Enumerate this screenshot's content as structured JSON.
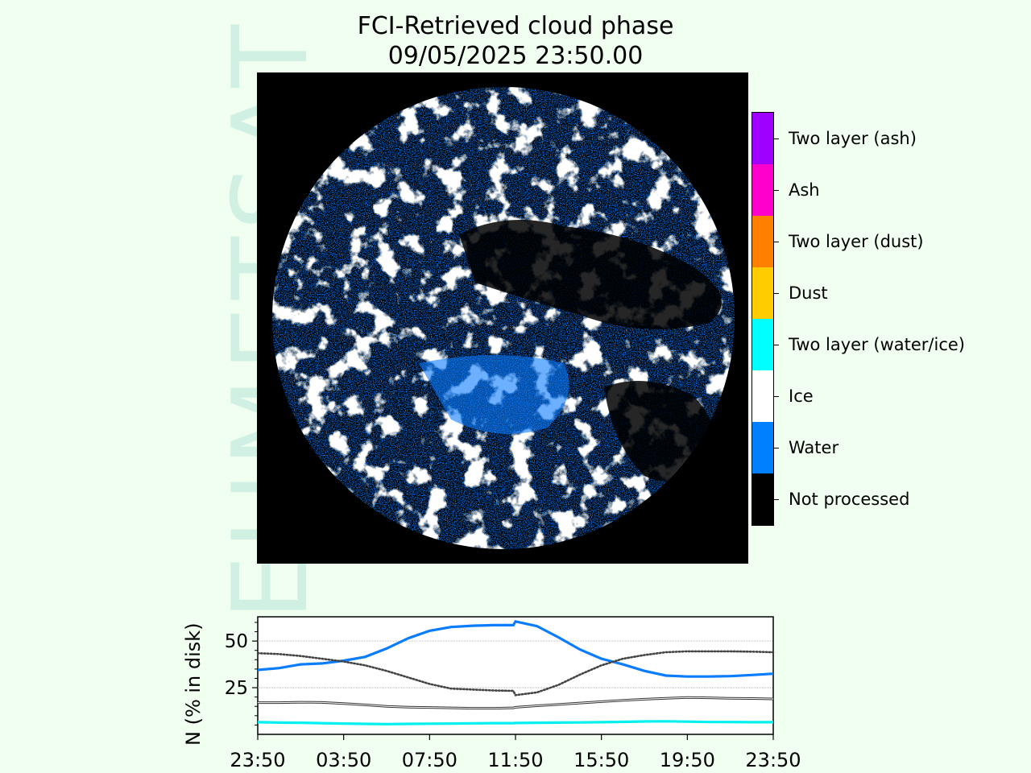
{
  "title_line1": "FCI-Retrieved cloud phase",
  "title_line2": "09/05/2025 23:50.00",
  "watermark": "EUMETSAT",
  "legend": [
    {
      "label": "Two layer (ash)",
      "color": "#a000ff"
    },
    {
      "label": "Ash",
      "color": "#ff00cc"
    },
    {
      "label": "Two layer (dust)",
      "color": "#ff7f00"
    },
    {
      "label": "Dust",
      "color": "#ffcc00"
    },
    {
      "label": "Two layer (water/ice)",
      "color": "#00ffff"
    },
    {
      "label": "Ice",
      "color": "#ffffff"
    },
    {
      "label": "Water",
      "color": "#0080ff"
    },
    {
      "label": "Not processed",
      "color": "#000000"
    }
  ],
  "chart_data": {
    "type": "line",
    "ylabel": "N (% in disk)",
    "xlabel": "",
    "x_ticks": [
      "23:50",
      "03:50",
      "07:50",
      "11:50",
      "15:50",
      "19:50",
      "23:50"
    ],
    "y_ticks": [
      25,
      50
    ],
    "ylim": [
      0,
      63
    ],
    "xlim_hours": [
      0,
      24
    ],
    "grid": true,
    "x_hours": [
      0,
      1,
      2,
      3,
      4,
      5,
      6,
      7,
      8,
      9,
      10,
      11,
      11.9,
      12,
      13,
      14,
      15,
      16,
      17,
      18,
      19,
      20,
      21,
      22,
      23,
      24
    ],
    "series": [
      {
        "color": "#0a7cff",
        "style": "solid-thick",
        "values": [
          34.5,
          35.5,
          37.5,
          38.0,
          39.5,
          41.5,
          46.0,
          51.5,
          55.5,
          57.5,
          58.2,
          58.5,
          58.5,
          60.5,
          58.0,
          52.0,
          45.5,
          40.5,
          37.5,
          34.0,
          31.5,
          31.0,
          31.0,
          31.2,
          31.8,
          32.5
        ]
      },
      {
        "color": "#444444",
        "style": "dotted",
        "values": [
          43.5,
          43.0,
          42.0,
          40.5,
          39.0,
          37.0,
          34.0,
          30.5,
          27.0,
          24.5,
          24.0,
          23.5,
          23.3,
          21.0,
          22.5,
          26.5,
          32.0,
          37.0,
          40.5,
          42.5,
          44.0,
          44.5,
          44.5,
          44.5,
          44.3,
          44.0
        ]
      },
      {
        "color": "#333333",
        "style": "thin-double",
        "values": [
          17.0,
          17.0,
          17.2,
          17.1,
          16.5,
          15.8,
          15.0,
          14.6,
          14.4,
          14.2,
          14.0,
          14.0,
          14.2,
          14.5,
          15.3,
          16.0,
          16.8,
          17.5,
          18.2,
          18.8,
          19.3,
          19.7,
          19.6,
          19.3,
          19.2,
          19.0
        ]
      },
      {
        "color": "#00f0f0",
        "style": "solid-thick",
        "values": [
          6.5,
          6.3,
          6.2,
          6.0,
          5.8,
          5.6,
          5.5,
          5.6,
          5.7,
          5.8,
          5.9,
          6.0,
          6.0,
          6.1,
          6.2,
          6.3,
          6.4,
          6.5,
          6.7,
          6.9,
          7.0,
          6.8,
          6.6,
          6.6,
          6.5,
          6.5
        ]
      }
    ]
  }
}
